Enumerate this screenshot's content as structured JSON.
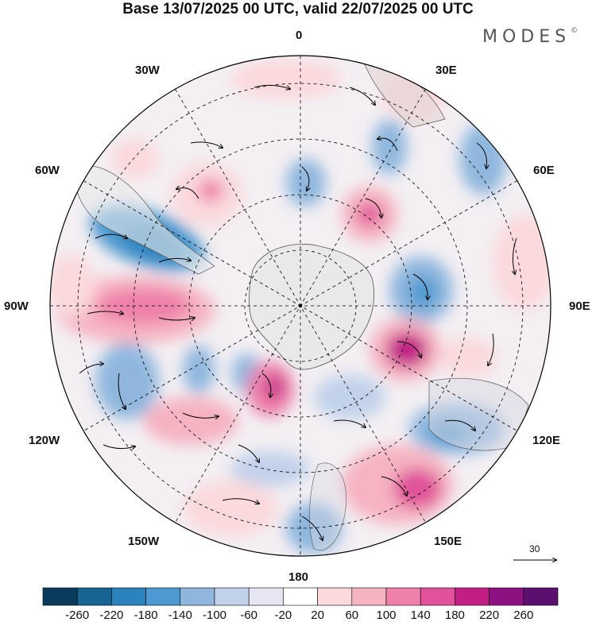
{
  "header": {
    "title": "Base 13/07/2025 00 UTC, valid 22/07/2025 00 UTC",
    "brand": "MODES"
  },
  "map": {
    "projection": "polar-stereographic-south",
    "lon_labels": {
      "0": "0",
      "30E": "30E",
      "60E": "60E",
      "90E": "90E",
      "120E": "120E",
      "150E": "150E",
      "180": "180",
      "150W": "150W",
      "120W": "120W",
      "90W": "90W",
      "60W": "60W",
      "30W": "30W"
    },
    "features": [
      "shaded-anomaly-field",
      "wind-vectors",
      "coastlines",
      "graticule"
    ],
    "vector_reference": {
      "value": "30"
    }
  },
  "colorbar": {
    "ticks": [
      "-260",
      "-220",
      "-180",
      "-140",
      "-100",
      "-60",
      "-20",
      "20",
      "60",
      "100",
      "140",
      "180",
      "220",
      "260"
    ],
    "colors": [
      "#0b3b5c",
      "#176391",
      "#2c82bd",
      "#4d9ad0",
      "#8fb7de",
      "#c1d1ea",
      "#e6e5f2",
      "#ffffff",
      "#fbd9dc",
      "#f6b3c1",
      "#ee80aa",
      "#e0529a",
      "#c21e86",
      "#8d1180",
      "#5b0f6e"
    ]
  }
}
